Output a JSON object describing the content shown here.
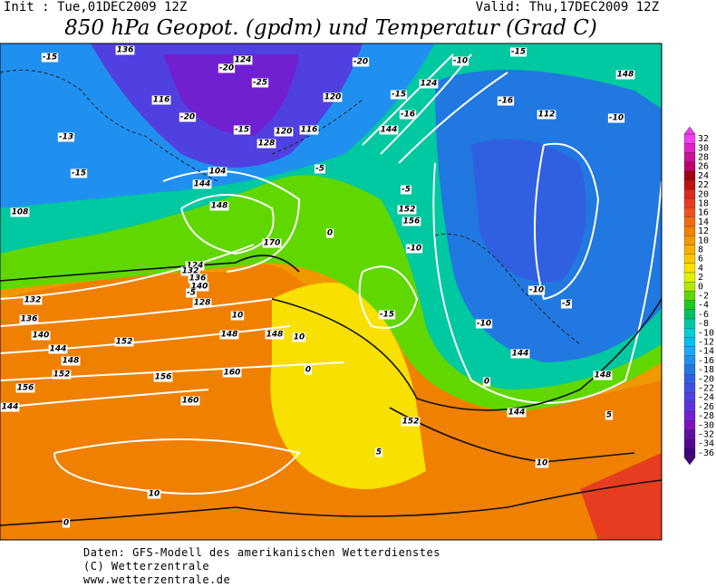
{
  "header": {
    "init": "Init : Tue,01DEC2009 12Z",
    "valid": "Valid: Thu,17DEC2009 12Z",
    "title": "850 hPa Geopot. (gpdm) und Temperatur (Grad C)"
  },
  "legend": {
    "levels": [
      32,
      30,
      28,
      26,
      24,
      22,
      20,
      18,
      16,
      14,
      12,
      10,
      8,
      6,
      4,
      2,
      0,
      -2,
      -4,
      -6,
      -8,
      -10,
      -12,
      -14,
      -16,
      -18,
      -20,
      -22,
      -24,
      -26,
      -28,
      -30,
      -32,
      -34,
      -36
    ],
    "colors": [
      "#f040f0",
      "#e020c8",
      "#d01098",
      "#c00068",
      "#a00010",
      "#c01010",
      "#d82820",
      "#e83c20",
      "#f05020",
      "#f06a10",
      "#f08000",
      "#f09800",
      "#f8b000",
      "#f8c800",
      "#f8e000",
      "#e0f000",
      "#b0e800",
      "#60d800",
      "#20c820",
      "#00c060",
      "#00c8a0",
      "#00d0d0",
      "#00c0f0",
      "#20a8f8",
      "#2090f0",
      "#2078e0",
      "#3060e0",
      "#4050e0",
      "#5040e0",
      "#6030e0",
      "#7020d0",
      "#8010c0",
      "#6010a0",
      "#500890",
      "#400080"
    ]
  },
  "map_labels": [
    "-15",
    "136",
    "124",
    "-20",
    "-25",
    "-20",
    "-10",
    "-15",
    "-13",
    "116",
    "-20",
    "120",
    "124",
    "-15",
    "-16",
    "148",
    "-16",
    "112",
    "-10",
    "128",
    "120",
    "116",
    "-15",
    "144",
    "-15",
    "108",
    "104",
    "144",
    "148",
    "-5",
    "152",
    "156",
    "-10",
    "-5",
    "0",
    "170",
    "124",
    "132",
    "136",
    "140",
    "-5",
    "128",
    "132",
    "136",
    "140",
    "144",
    "148",
    "152",
    "156",
    "144",
    "10",
    "152",
    "148",
    "148",
    "10",
    "156",
    "160",
    "160",
    "10",
    "0",
    "0",
    "-15",
    "-10",
    "-10",
    "144",
    "-5",
    "0",
    "144",
    "148",
    "5",
    "152",
    "5",
    "10"
  ],
  "footer": {
    "line1": "Daten: GFS-Modell des amerikanischen Wetterdienstes",
    "line2": "(C) Wetterzentrale",
    "line3": "www.wetterzentrale.de"
  }
}
